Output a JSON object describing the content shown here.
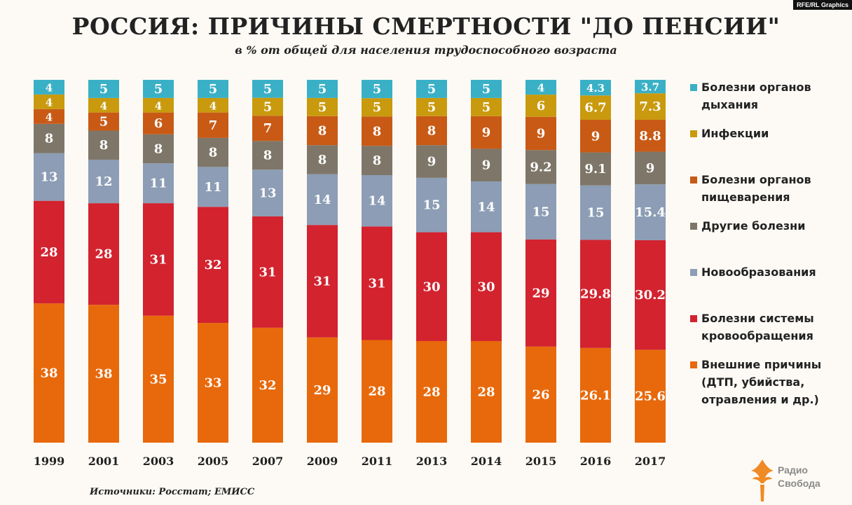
{
  "credit": "RFE/RL Graphics",
  "title": "РОССИЯ: ПРИЧИНЫ СМЕРТНОСТИ \"ДО ПЕНСИИ\"",
  "subtitle": "в % от общей для населения трудоспособного возраста",
  "source": "Источники: Росстат; ЕМИСС",
  "logo": {
    "line1": "Радио",
    "line2": "Свобода",
    "icon": "torch-flame-icon",
    "color": "#f08a24"
  },
  "chart_data": {
    "type": "bar",
    "stacked": true,
    "categories": [
      "1999",
      "2001",
      "2003",
      "2005",
      "2007",
      "2009",
      "2011",
      "2013",
      "2014",
      "2015",
      "2016",
      "2017"
    ],
    "series": [
      {
        "name": "Внешние причины (ДТП, убийства, отравления и др.)",
        "legend": [
          "Внешние причины",
          "(ДТП, убийства,",
          "отравления и др.)"
        ],
        "color": "#e8690b",
        "values": [
          38,
          38,
          35,
          33,
          32,
          29,
          28,
          28,
          28,
          26,
          26.1,
          25.6
        ]
      },
      {
        "name": "Болезни системы кровообращения",
        "legend": [
          "Болезни системы",
          "кровообращения"
        ],
        "color": "#d2232f",
        "values": [
          28,
          28,
          31,
          32,
          31,
          31,
          31,
          30,
          30,
          29,
          29.8,
          30.2
        ]
      },
      {
        "name": "Новообразования",
        "legend": [
          "Новообразования"
        ],
        "color": "#8c9db5",
        "values": [
          13,
          12,
          11,
          11,
          13,
          14,
          14,
          15,
          14,
          15,
          15,
          15.4
        ]
      },
      {
        "name": "Другие болезни",
        "legend": [
          "Другие болезни"
        ],
        "color": "#7e7668",
        "values": [
          8,
          8,
          8,
          8,
          8,
          8,
          8,
          9,
          9,
          9.2,
          9.1,
          9
        ]
      },
      {
        "name": "Болезни органов пищеварения",
        "legend": [
          "Болезни органов",
          "пищеварения"
        ],
        "color": "#c85a16",
        "values": [
          4,
          5,
          6,
          7,
          7,
          8,
          8,
          8,
          9,
          9,
          9,
          8.8
        ]
      },
      {
        "name": "Инфекции",
        "legend": [
          "Инфекции"
        ],
        "color": "#c99a0e",
        "values": [
          4,
          4,
          4,
          4,
          5,
          5,
          5,
          5,
          5,
          6,
          6.7,
          7.3
        ]
      },
      {
        "name": "Болезни органов дыхания",
        "legend": [
          "Болезни органов",
          "дыхания"
        ],
        "color": "#3ab0c6",
        "values": [
          4,
          5,
          5,
          5,
          5,
          5,
          5,
          5,
          5,
          4,
          4.3,
          3.7
        ]
      }
    ],
    "title": "РОССИЯ: ПРИЧИНЫ СМЕРТНОСТИ \"ДО ПЕНСИИ\"",
    "subtitle": "в % от общей для населения трудоспособного возраста",
    "xlabel": "",
    "ylabel": "",
    "legend_position": "right",
    "grid": false
  }
}
